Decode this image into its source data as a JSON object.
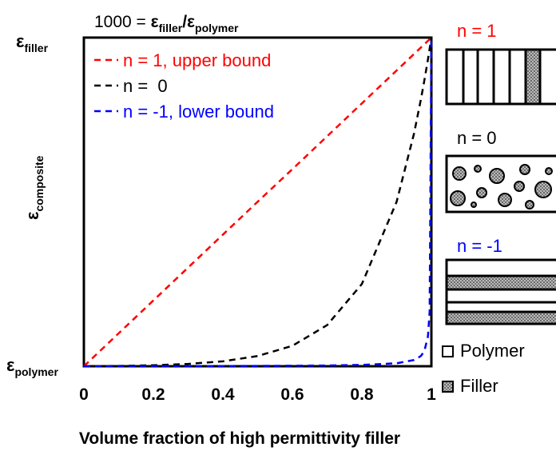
{
  "chart_data": {
    "type": "line",
    "title": [
      {
        "text": "1000 = "
      },
      {
        "text": "ε",
        "bold": true
      },
      {
        "text": "filler",
        "bold": true,
        "sub": true
      },
      {
        "text": "/ε",
        "bold": true
      },
      {
        "text": "polymer",
        "bold": true,
        "sub": true
      }
    ],
    "xlabel": "Volume fraction of high permittivity filler",
    "ylabel": {
      "text": "ε",
      "sub": "composite"
    },
    "x": [
      0,
      0.1,
      0.2,
      0.3,
      0.4,
      0.5,
      0.6,
      0.7,
      0.8,
      0.9,
      0.95,
      0.97,
      0.98,
      0.99,
      0.995,
      1
    ],
    "series": [
      {
        "name": "n = 1, upper bound",
        "color": "#ff0000",
        "values": [
          1,
          101,
          201,
          301,
          401,
          501,
          600,
          700,
          800,
          900,
          950,
          970,
          980,
          990,
          995,
          1000
        ]
      },
      {
        "name": "n =  0",
        "color": "#000000",
        "values": [
          1,
          2,
          4,
          8,
          16,
          32,
          63,
          126,
          251,
          501,
          708,
          813,
          871,
          933,
          966,
          1000
        ]
      },
      {
        "name": "n = -1, lower bound",
        "color": "#0000ff",
        "values": [
          1,
          1.1,
          1.25,
          1.4,
          1.7,
          2,
          2.5,
          3.3,
          5,
          10,
          20,
          32,
          48,
          91,
          167,
          1000
        ]
      }
    ],
    "xlim": [
      0,
      1
    ],
    "xticks": [
      0,
      0.2,
      0.4,
      0.6,
      0.8,
      1
    ],
    "ylim": [
      1,
      1000
    ],
    "yticks": [
      {
        "value": 1,
        "label": "ε",
        "sub": "polymer"
      },
      {
        "value": 1000,
        "label": "ε",
        "sub": "filler"
      }
    ],
    "legend": "upper left",
    "grid": false
  },
  "schematics": [
    {
      "label": "n = 1",
      "color": "#ff0000"
    },
    {
      "label": "n = 0",
      "color": "#000000"
    },
    {
      "label": "n = -1",
      "color": "#0000ff"
    }
  ],
  "material_legend": [
    "Polymer",
    "Filler"
  ]
}
